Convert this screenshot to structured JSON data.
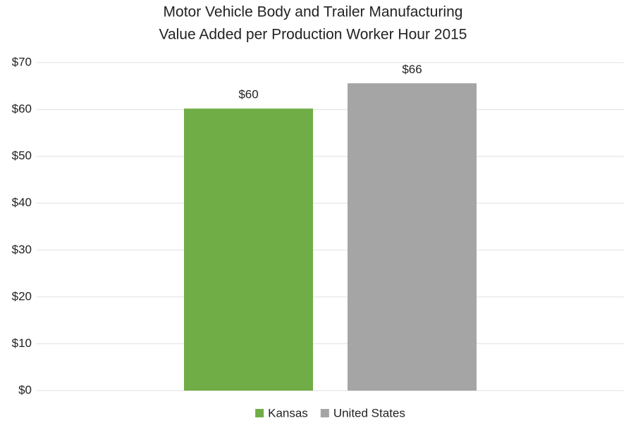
{
  "chart_data": {
    "type": "bar",
    "title": [
      "Motor Vehicle Body and Trailer Manufacturing",
      "Value Added per Production Worker Hour 2015"
    ],
    "categories": [
      null
    ],
    "series": [
      {
        "name": "Kansas",
        "color": "#70ad47",
        "values": [
          60.2
        ],
        "value_labels": [
          "$60"
        ]
      },
      {
        "name": "United States",
        "color": "#a5a5a5",
        "values": [
          65.6
        ],
        "value_labels": [
          "$66"
        ]
      }
    ],
    "ylim": [
      0,
      70
    ],
    "yticks": [
      {
        "value": 0,
        "label": "$0"
      },
      {
        "value": 10,
        "label": "$10"
      },
      {
        "value": 20,
        "label": "$20"
      },
      {
        "value": 30,
        "label": "$30"
      },
      {
        "value": 40,
        "label": "$40"
      },
      {
        "value": 50,
        "label": "$50"
      },
      {
        "value": 60,
        "label": "$60"
      },
      {
        "value": 70,
        "label": "$70"
      }
    ],
    "grid": true,
    "legend": "bottom"
  }
}
